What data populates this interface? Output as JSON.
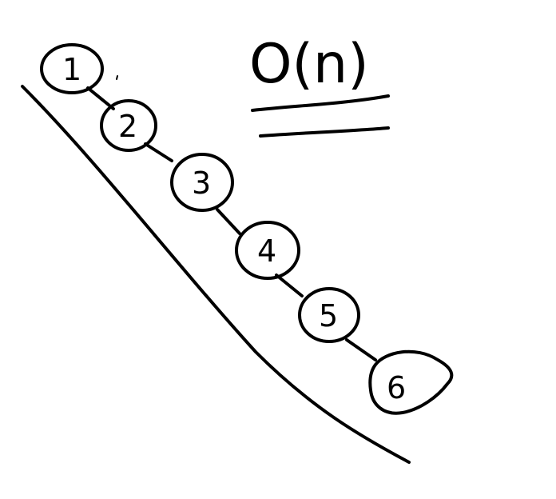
{
  "complexity": {
    "label": "O(n)"
  },
  "nodes": [
    {
      "label": "1"
    },
    {
      "label": "2"
    },
    {
      "label": "3"
    },
    {
      "label": "4"
    },
    {
      "label": "5"
    },
    {
      "label": "6"
    }
  ],
  "colors": {
    "ink": "#000000",
    "background": "#ffffff"
  }
}
